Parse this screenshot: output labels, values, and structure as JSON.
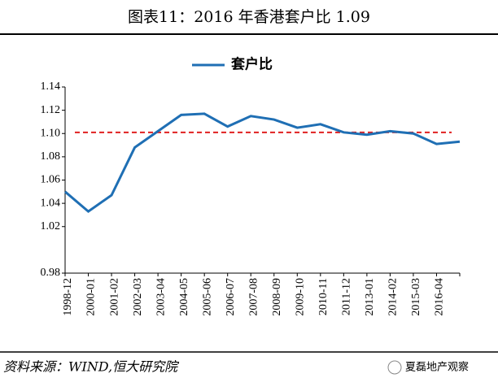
{
  "chart_data": {
    "type": "line",
    "title": "图表11：2016 年香港套户比 1.09",
    "source": "资料来源：WIND,恒大研究院",
    "watermark": "夏磊地产观察",
    "categories": [
      "1998-12",
      "2000-01",
      "2001-02",
      "2002-03",
      "2003-04",
      "2004-05",
      "2005-06",
      "2006-07",
      "2007-08",
      "2008-09",
      "2009-10",
      "2010-11",
      "2011-12",
      "2013-01",
      "2014-02",
      "2015-03",
      "2016-04",
      null
    ],
    "series": [
      {
        "name": "套户比",
        "color": "#1f6fb4",
        "values": [
          1.05,
          1.033,
          1.047,
          1.088,
          1.102,
          1.116,
          1.117,
          1.106,
          1.115,
          1.112,
          1.105,
          1.108,
          1.101,
          1.099,
          1.102,
          1.1,
          1.091,
          1.093
        ]
      }
    ],
    "reference_line": {
      "value": 1.101,
      "color": "#e02020"
    },
    "ylim": [
      0.98,
      1.14
    ],
    "yticks": [
      0.98,
      1.02,
      1.04,
      1.06,
      1.08,
      {
        "value": 1.1,
        "label": "1.10"
      },
      1.12,
      1.14
    ],
    "legend": "top"
  }
}
